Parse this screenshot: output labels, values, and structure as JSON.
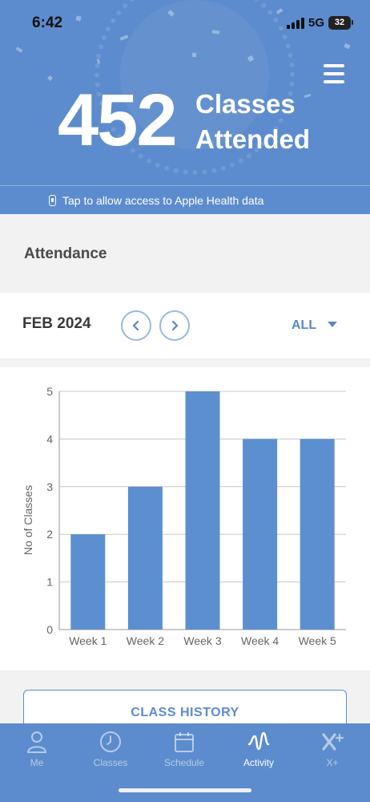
{
  "status_bar": {
    "time": "6:42",
    "network": "5G",
    "battery": "32"
  },
  "hero": {
    "count": "452",
    "label_line1": "Classes",
    "label_line2": "Attended"
  },
  "health_prompt": "Tap to allow access to Apple Health data",
  "attendance": {
    "title": "Attendance",
    "month": "FEB 2024",
    "filter": "ALL"
  },
  "chart_data": {
    "type": "bar",
    "categories": [
      "Week 1",
      "Week 2",
      "Week 3",
      "Week 4",
      "Week 5"
    ],
    "values": [
      2,
      3,
      5,
      4,
      4
    ],
    "ylabel": "No of Classes",
    "xlabel": "",
    "ylim": [
      0,
      5
    ],
    "yticks": [
      "0",
      "1",
      "2",
      "3",
      "4",
      "5"
    ],
    "grid": true,
    "bar_color": "#5b8fd0"
  },
  "class_history_label": "CLASS HISTORY",
  "tabs": [
    {
      "label": "Me",
      "icon": "person-icon",
      "active": false
    },
    {
      "label": "Classes",
      "icon": "clock-icon",
      "active": false
    },
    {
      "label": "Schedule",
      "icon": "calendar-icon",
      "active": false
    },
    {
      "label": "Activity",
      "icon": "activity-wave-icon",
      "active": true
    },
    {
      "label": "X+",
      "icon": "x-plus-icon",
      "active": false
    }
  ],
  "colors": {
    "brand_blue": "#5c8ccd",
    "accent_text": "#5a87c4"
  }
}
